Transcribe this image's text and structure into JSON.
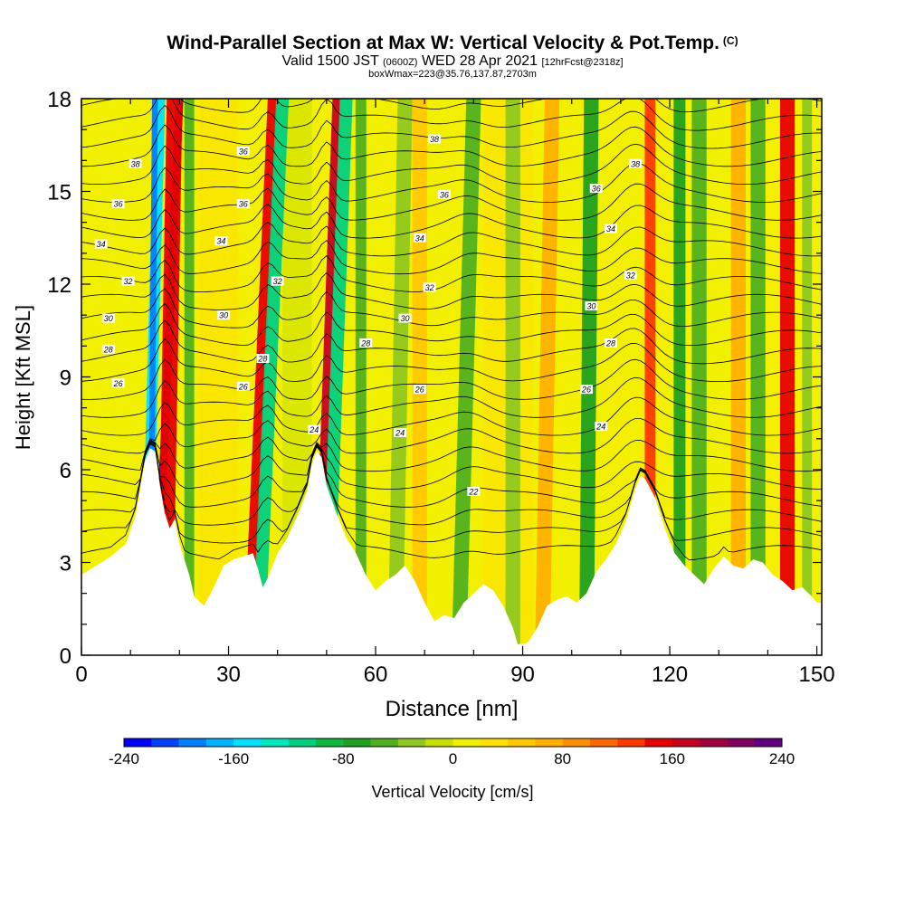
{
  "title": {
    "main": "Wind-Parallel Section at Max W: Vertical Velocity & Pot.Temp.",
    "main_tag": "(C)",
    "valid_a": "Valid 1500 JST",
    "valid_b": "(0600Z)",
    "valid_c": "WED 28 Apr 2021",
    "valid_d": "[12hrFcst@2318z]",
    "box": "boxWmax=223@35.76,137.87,2703m"
  },
  "chart_data": {
    "type": "heatmap",
    "xlabel": "Distance [nm]",
    "ylabel": "Height [Kft MSL]",
    "xlim": [
      0,
      151
    ],
    "ylim": [
      0,
      18
    ],
    "xticks": [
      "0",
      "30",
      "60",
      "90",
      "120",
      "150"
    ],
    "yticks": [
      "0",
      "3",
      "6",
      "9",
      "12",
      "15",
      "18"
    ],
    "colorbar": {
      "label": "Vertical Velocity [cm/s]",
      "range": [
        -240,
        240
      ],
      "step": 20,
      "tick_labels": [
        "-240",
        "-160",
        "-80",
        "0",
        "80",
        "160",
        "240"
      ],
      "colors": [
        "#0000ff",
        "#0040ff",
        "#0080ff",
        "#00b4ff",
        "#00e0ff",
        "#00e8c0",
        "#00d080",
        "#10b840",
        "#20a020",
        "#50b020",
        "#90c820",
        "#c8e000",
        "#f0f000",
        "#ffe000",
        "#ffc800",
        "#ffb000",
        "#ff9000",
        "#ff6800",
        "#ff3800",
        "#e80000",
        "#c80020",
        "#a00040",
        "#800060",
        "#600080"
      ]
    },
    "terrain_kft": [
      [
        0,
        2.6
      ],
      [
        3,
        2.9
      ],
      [
        6,
        3.2
      ],
      [
        9,
        3.6
      ],
      [
        11,
        4.5
      ],
      [
        13,
        6.3
      ],
      [
        14,
        6.7
      ],
      [
        15,
        6.6
      ],
      [
        16,
        5.5
      ],
      [
        17,
        4.6
      ],
      [
        18,
        4.1
      ],
      [
        19,
        4.4
      ],
      [
        20,
        3.6
      ],
      [
        22,
        2.6
      ],
      [
        23,
        1.9
      ],
      [
        25,
        1.6
      ],
      [
        27,
        2.2
      ],
      [
        29,
        2.9
      ],
      [
        31,
        3.1
      ],
      [
        33,
        3.2
      ],
      [
        35,
        3.3
      ],
      [
        36,
        2.8
      ],
      [
        37,
        2.2
      ],
      [
        38,
        2.5
      ],
      [
        40,
        3.3
      ],
      [
        42,
        3.8
      ],
      [
        44,
        4.5
      ],
      [
        46,
        5.3
      ],
      [
        47,
        6.2
      ],
      [
        48,
        6.6
      ],
      [
        49,
        6.4
      ],
      [
        50,
        5.5
      ],
      [
        52,
        4.6
      ],
      [
        54,
        3.8
      ],
      [
        56,
        3.3
      ],
      [
        58,
        2.6
      ],
      [
        60,
        2.1
      ],
      [
        62,
        2.4
      ],
      [
        64,
        2.6
      ],
      [
        66,
        2.9
      ],
      [
        68,
        2.4
      ],
      [
        70,
        1.7
      ],
      [
        72,
        1.1
      ],
      [
        74,
        1.3
      ],
      [
        76,
        1.2
      ],
      [
        78,
        1.7
      ],
      [
        80,
        2.0
      ],
      [
        82,
        2.3
      ],
      [
        84,
        2.1
      ],
      [
        86,
        1.6
      ],
      [
        88,
        0.9
      ],
      [
        89,
        0.35
      ],
      [
        91,
        0.4
      ],
      [
        93,
        0.9
      ],
      [
        95,
        1.6
      ],
      [
        97,
        1.8
      ],
      [
        99,
        1.9
      ],
      [
        101,
        1.7
      ],
      [
        103,
        2.0
      ],
      [
        105,
        2.7
      ],
      [
        107,
        3.1
      ],
      [
        109,
        3.6
      ],
      [
        111,
        4.3
      ],
      [
        113,
        5.4
      ],
      [
        114,
        5.8
      ],
      [
        115,
        5.7
      ],
      [
        117,
        5.1
      ],
      [
        119,
        4.1
      ],
      [
        121,
        3.3
      ],
      [
        123,
        2.9
      ],
      [
        125,
        2.6
      ],
      [
        127,
        2.3
      ],
      [
        129,
        2.8
      ],
      [
        131,
        3.2
      ],
      [
        133,
        2.9
      ],
      [
        135,
        2.8
      ],
      [
        137,
        3.1
      ],
      [
        139,
        3.0
      ],
      [
        141,
        2.6
      ],
      [
        143,
        2.4
      ],
      [
        145,
        2.1
      ],
      [
        147,
        2.2
      ],
      [
        149,
        1.9
      ],
      [
        150,
        1.7
      ],
      [
        151,
        1.7
      ]
    ],
    "vertical_velocity_bands": [
      {
        "x_base": 15,
        "x_top": 20,
        "width_nm": 1.6,
        "value": 240
      },
      {
        "x_base": 17,
        "x_top": 19,
        "width_nm": 3.2,
        "value": 150
      },
      {
        "x_base": 13,
        "x_top": 16,
        "width_nm": 2.2,
        "value": -150
      },
      {
        "x_base": 14,
        "x_top": 15,
        "width_nm": 1.2,
        "value": -200
      },
      {
        "x_base": 22,
        "x_top": 22,
        "width_nm": 2.0,
        "value": -60
      },
      {
        "x_base": 34,
        "x_top": 39,
        "width_nm": 2.0,
        "value": 140
      },
      {
        "x_base": 36,
        "x_top": 41,
        "width_nm": 2.6,
        "value": -110
      },
      {
        "x_base": 48,
        "x_top": 52,
        "width_nm": 1.6,
        "value": 170
      },
      {
        "x_base": 50,
        "x_top": 54,
        "width_nm": 2.6,
        "value": -110
      },
      {
        "x_base": 57,
        "x_top": 57,
        "width_nm": 2.2,
        "value": -50
      },
      {
        "x_base": 64,
        "x_top": 66,
        "width_nm": 3.0,
        "value": -40
      },
      {
        "x_base": 69,
        "x_top": 69,
        "width_nm": 3.0,
        "value": 50
      },
      {
        "x_base": 77,
        "x_top": 80,
        "width_nm": 3.0,
        "value": -50
      },
      {
        "x_base": 88,
        "x_top": 88,
        "width_nm": 3.0,
        "value": -40
      },
      {
        "x_base": 94,
        "x_top": 96,
        "width_nm": 3.0,
        "value": 60
      },
      {
        "x_base": 103,
        "x_top": 104,
        "width_nm": 3.0,
        "value": -70
      },
      {
        "x_base": 116,
        "x_top": 116,
        "width_nm": 2.2,
        "value": 120
      },
      {
        "x_base": 122,
        "x_top": 122,
        "width_nm": 2.4,
        "value": -80
      },
      {
        "x_base": 126,
        "x_top": 126,
        "width_nm": 3.0,
        "value": -50
      },
      {
        "x_base": 134,
        "x_top": 134,
        "width_nm": 3.0,
        "value": 70
      },
      {
        "x_base": 138,
        "x_top": 138,
        "width_nm": 3.0,
        "value": -50
      },
      {
        "x_base": 144,
        "x_top": 144,
        "width_nm": 3.0,
        "value": 140
      },
      {
        "x_base": 148,
        "x_top": 148,
        "width_nm": 2.0,
        "value": -40
      }
    ],
    "potential_temperature_labels": [
      {
        "text": "38",
        "x": 11,
        "y": 15.9
      },
      {
        "text": "36",
        "x": 33,
        "y": 16.3
      },
      {
        "text": "38",
        "x": 72,
        "y": 16.7
      },
      {
        "text": "38",
        "x": 113,
        "y": 15.9
      },
      {
        "text": "36",
        "x": 7.5,
        "y": 14.6
      },
      {
        "text": "36",
        "x": 33,
        "y": 14.6
      },
      {
        "text": "36",
        "x": 74,
        "y": 14.9
      },
      {
        "text": "36",
        "x": 105,
        "y": 15.1
      },
      {
        "text": "34",
        "x": 4,
        "y": 13.3
      },
      {
        "text": "34",
        "x": 28.5,
        "y": 13.4
      },
      {
        "text": "34",
        "x": 69,
        "y": 13.5
      },
      {
        "text": "34",
        "x": 108,
        "y": 13.8
      },
      {
        "text": "32",
        "x": 9.5,
        "y": 12.1
      },
      {
        "text": "32",
        "x": 40,
        "y": 12.1
      },
      {
        "text": "32",
        "x": 71,
        "y": 11.9
      },
      {
        "text": "32",
        "x": 112,
        "y": 12.3
      },
      {
        "text": "30",
        "x": 5.5,
        "y": 10.9
      },
      {
        "text": "30",
        "x": 29,
        "y": 11.0
      },
      {
        "text": "30",
        "x": 66,
        "y": 10.9
      },
      {
        "text": "30",
        "x": 104,
        "y": 11.3
      },
      {
        "text": "28",
        "x": 5.5,
        "y": 9.9
      },
      {
        "text": "28",
        "x": 58,
        "y": 10.1
      },
      {
        "text": "28",
        "x": 108,
        "y": 10.1
      },
      {
        "text": "28",
        "x": 37,
        "y": 9.6
      },
      {
        "text": "26",
        "x": 7.5,
        "y": 8.8
      },
      {
        "text": "26",
        "x": 33,
        "y": 8.7
      },
      {
        "text": "26",
        "x": 69,
        "y": 8.6
      },
      {
        "text": "26",
        "x": 103,
        "y": 8.6
      },
      {
        "text": "24",
        "x": 47.5,
        "y": 7.3
      },
      {
        "text": "24",
        "x": 65,
        "y": 7.2
      },
      {
        "text": "24",
        "x": 106,
        "y": 7.4
      },
      {
        "text": "22",
        "x": 80,
        "y": 5.3
      }
    ]
  }
}
